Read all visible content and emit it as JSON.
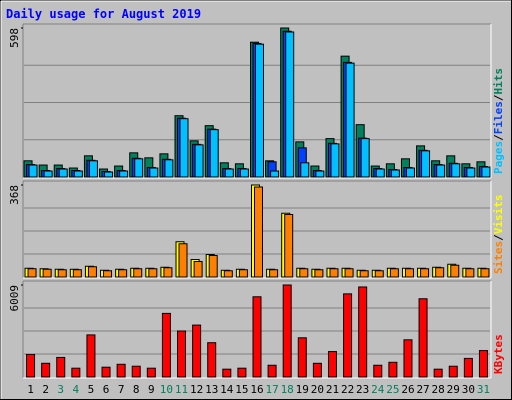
{
  "title": "Daily usage for August 2019",
  "legend_separator": "/",
  "weekend_days": [
    "3",
    "4",
    "10",
    "11",
    "17",
    "18",
    "24",
    "25",
    "31"
  ],
  "chart_data": [
    {
      "type": "bar",
      "ylim": [
        0,
        598
      ],
      "yticks": [
        598
      ],
      "grid": true,
      "series": [
        {
          "name": "Hits",
          "color": "#00805c",
          "values": [
            65,
            48,
            48,
            36,
            85,
            32,
            44,
            97,
            77,
            93,
            246,
            145,
            206,
            57,
            53,
            541,
            65,
            598,
            141,
            44,
            154,
            485,
            210,
            44,
            53,
            73,
            125,
            65,
            85,
            53,
            61
          ]
        },
        {
          "name": "Files",
          "color": "#0040ff",
          "values": [
            50,
            26,
            34,
            26,
            67,
            22,
            26,
            75,
            38,
            71,
            236,
            131,
            192,
            34,
            34,
            536,
            61,
            585,
            117,
            26,
            135,
            460,
            156,
            34,
            30,
            38,
            107,
            50,
            55,
            38,
            42
          ]
        },
        {
          "name": "Pages",
          "color": "#00c0ff",
          "values": [
            48,
            24,
            32,
            24,
            65,
            20,
            24,
            73,
            36,
            69,
            234,
            129,
            190,
            32,
            32,
            533,
            24,
            582,
            57,
            24,
            133,
            457,
            154,
            32,
            28,
            36,
            105,
            48,
            53,
            36,
            40
          ]
        }
      ],
      "legend_order": [
        2,
        1,
        0
      ]
    },
    {
      "type": "bar",
      "ylim": [
        0,
        368
      ],
      "yticks": [
        368
      ],
      "grid": true,
      "series": [
        {
          "name": "Visits",
          "color": "#ffff00",
          "values": [
            35,
            33,
            31,
            31,
            43,
            27,
            31,
            35,
            35,
            39,
            141,
            70,
            90,
            27,
            31,
            368,
            31,
            255,
            35,
            31,
            35,
            35,
            27,
            27,
            35,
            35,
            35,
            39,
            51,
            35,
            35
          ]
        },
        {
          "name": "Sites",
          "color": "#ff8000",
          "values": [
            33,
            31,
            29,
            29,
            41,
            25,
            29,
            33,
            33,
            37,
            133,
            62,
            86,
            25,
            29,
            360,
            29,
            250,
            33,
            29,
            33,
            33,
            25,
            25,
            33,
            33,
            33,
            37,
            47,
            33,
            33
          ]
        }
      ],
      "legend_order": [
        1,
        0
      ]
    },
    {
      "type": "bar",
      "ylim": [
        0,
        6009
      ],
      "yticks": [
        6009
      ],
      "grid": true,
      "categories": [
        "1",
        "2",
        "3",
        "4",
        "5",
        "6",
        "7",
        "8",
        "9",
        "10",
        "11",
        "12",
        "13",
        "14",
        "15",
        "16",
        "17",
        "18",
        "19",
        "20",
        "21",
        "22",
        "23",
        "24",
        "25",
        "26",
        "27",
        "28",
        "29",
        "30",
        "31"
      ],
      "series": [
        {
          "name": "KBytes",
          "color": "#ff0000",
          "values": [
            1470,
            895,
            1278,
            575,
            2750,
            640,
            830,
            703,
            575,
            4155,
            3005,
            3390,
            2240,
            511,
            575,
            5240,
            767,
            6009,
            2560,
            895,
            1660,
            5430,
            5880,
            767,
            960,
            2430,
            5110,
            511,
            703,
            1215,
            1725
          ]
        }
      ],
      "legend_order": [
        0
      ]
    }
  ]
}
